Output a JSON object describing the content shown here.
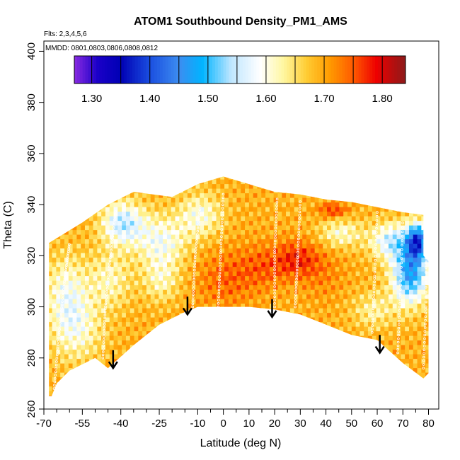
{
  "chart_data": {
    "type": "heatmap",
    "title": "ATOM1 Southbound Density_PM1_AMS",
    "subtitle_flights": "Flts: 2,3,4,5,6",
    "subtitle_dates": "MMDD: 0801,0803,0806,0808,0812",
    "xlabel": "Latitude (deg N)",
    "ylabel": "Theta (C)",
    "xlim": [
      -70,
      84
    ],
    "ylim": [
      260,
      404
    ],
    "x_ticks": [
      -70,
      -55,
      -40,
      -25,
      -10,
      0,
      10,
      20,
      30,
      40,
      50,
      60,
      70,
      80
    ],
    "x_minor_ticks": [
      -65,
      -60,
      -50,
      -45,
      -35,
      -30,
      -20,
      -15,
      -5,
      5,
      15,
      25,
      35,
      45,
      55,
      65,
      75
    ],
    "y_ticks": [
      260,
      280,
      300,
      320,
      340,
      360,
      380,
      400
    ],
    "colorbar": {
      "ticks": [
        1.3,
        1.4,
        1.5,
        1.6,
        1.7,
        1.8
      ],
      "tick_labels": [
        "1.30",
        "1.40",
        "1.50",
        "1.60",
        "1.70",
        "1.80"
      ],
      "range": [
        1.27,
        1.84
      ],
      "boundaries": [
        1.3,
        1.35,
        1.4,
        1.45,
        1.5,
        1.55,
        1.6,
        1.65,
        1.7,
        1.75,
        1.8
      ],
      "colors": [
        [
          1.27,
          "#8a2be2"
        ],
        [
          1.31,
          "#1a00c8"
        ],
        [
          1.35,
          "#0000b4"
        ],
        [
          1.4,
          "#1a4ee0"
        ],
        [
          1.45,
          "#3c8cf0"
        ],
        [
          1.49,
          "#00b4ff"
        ],
        [
          1.54,
          "#bfe6ff"
        ],
        [
          1.59,
          "#ffffff"
        ],
        [
          1.63,
          "#fff7a0"
        ],
        [
          1.67,
          "#ffcc33"
        ],
        [
          1.71,
          "#ff9a00"
        ],
        [
          1.75,
          "#ff5a00"
        ],
        [
          1.79,
          "#ee0000"
        ],
        [
          1.84,
          "#8b1a1a"
        ]
      ]
    },
    "domain_outline": [
      [
        -68,
        265
      ],
      [
        -68,
        325
      ],
      [
        -55,
        333
      ],
      [
        -45,
        340
      ],
      [
        -35,
        345
      ],
      [
        -20,
        343
      ],
      [
        -10,
        348
      ],
      [
        0,
        351
      ],
      [
        10,
        348
      ],
      [
        20,
        345
      ],
      [
        30,
        344
      ],
      [
        40,
        342
      ],
      [
        50,
        341
      ],
      [
        60,
        339
      ],
      [
        70,
        337
      ],
      [
        78,
        336
      ],
      [
        78,
        320
      ],
      [
        80,
        318
      ],
      [
        80,
        274
      ],
      [
        78,
        272
      ],
      [
        70,
        278
      ],
      [
        60,
        287
      ],
      [
        50,
        289
      ],
      [
        40,
        293
      ],
      [
        30,
        297
      ],
      [
        20,
        299
      ],
      [
        10,
        300
      ],
      [
        0,
        300
      ],
      [
        -10,
        300
      ],
      [
        -15,
        298
      ],
      [
        -25,
        293
      ],
      [
        -35,
        285
      ],
      [
        -45,
        276
      ],
      [
        -50,
        280
      ],
      [
        -60,
        275
      ],
      [
        -65,
        270
      ],
      [
        -67,
        265
      ]
    ],
    "field_features": [
      {
        "x": -58,
        "y": 290,
        "sx": 7,
        "sy": 9,
        "value": 1.61
      },
      {
        "x": -62,
        "y": 305,
        "sx": 6,
        "sy": 10,
        "value": 1.6
      },
      {
        "x": -45,
        "y": 310,
        "sx": 6,
        "sy": 8,
        "value": 1.62
      },
      {
        "x": -40,
        "y": 332,
        "sx": 6,
        "sy": 6,
        "value": 1.55
      },
      {
        "x": -25,
        "y": 325,
        "sx": 7,
        "sy": 7,
        "value": 1.59
      },
      {
        "x": -25,
        "y": 310,
        "sx": 5,
        "sy": 6,
        "value": 1.62
      },
      {
        "x": -10,
        "y": 335,
        "sx": 6,
        "sy": 6,
        "value": 1.6
      },
      {
        "x": 0,
        "y": 310,
        "sx": 8,
        "sy": 8,
        "value": 1.74
      },
      {
        "x": 15,
        "y": 315,
        "sx": 7,
        "sy": 6,
        "value": 1.74
      },
      {
        "x": 28,
        "y": 318,
        "sx": 6,
        "sy": 5,
        "value": 1.77
      },
      {
        "x": 38,
        "y": 312,
        "sx": 6,
        "sy": 7,
        "value": 1.72
      },
      {
        "x": 45,
        "y": 328,
        "sx": 6,
        "sy": 4,
        "value": 1.61
      },
      {
        "x": 42,
        "y": 337,
        "sx": 4,
        "sy": 2,
        "value": 1.77
      },
      {
        "x": 65,
        "y": 325,
        "sx": 6,
        "sy": 5,
        "value": 1.56
      },
      {
        "x": 72,
        "y": 312,
        "sx": 5,
        "sy": 8,
        "value": 1.47
      },
      {
        "x": 75,
        "y": 325,
        "sx": 3,
        "sy": 5,
        "value": 1.44
      },
      {
        "x": 58,
        "y": 298,
        "sx": 6,
        "sy": 5,
        "value": 1.63
      },
      {
        "x": -35,
        "y": 300,
        "sx": 7,
        "sy": 7,
        "value": 1.69
      }
    ],
    "field_background": 1.69,
    "flight_tracks": [
      [
        [
          -66,
          268
        ],
        [
          -64,
          290
        ],
        [
          -62,
          310
        ],
        [
          -60,
          325
        ]
      ],
      [
        [
          -47,
          280
        ],
        [
          -46,
          300
        ],
        [
          -44,
          320
        ],
        [
          -42,
          338
        ]
      ],
      [
        [
          -12,
          300
        ],
        [
          -11,
          320
        ],
        [
          -9,
          340
        ]
      ],
      [
        [
          -2,
          300
        ],
        [
          -1,
          322
        ],
        [
          0,
          345
        ]
      ],
      [
        [
          20,
          300
        ],
        [
          20,
          322
        ],
        [
          21,
          343
        ]
      ],
      [
        [
          28,
          300
        ],
        [
          29,
          320
        ],
        [
          30,
          342
        ]
      ],
      [
        [
          58,
          290
        ],
        [
          59,
          312
        ],
        [
          60,
          338
        ]
      ],
      [
        [
          68,
          282
        ],
        [
          69,
          305
        ],
        [
          70,
          334
        ]
      ],
      [
        [
          78,
          276
        ],
        [
          79,
          300
        ],
        [
          79,
          332
        ]
      ]
    ],
    "arrows": [
      {
        "x": -43,
        "y_top": 283,
        "y_bottom": 276
      },
      {
        "x": -14,
        "y_top": 304,
        "y_bottom": 297
      },
      {
        "x": 19,
        "y_top": 303,
        "y_bottom": 296
      },
      {
        "x": 61,
        "y_top": 289,
        "y_bottom": 282
      }
    ]
  }
}
